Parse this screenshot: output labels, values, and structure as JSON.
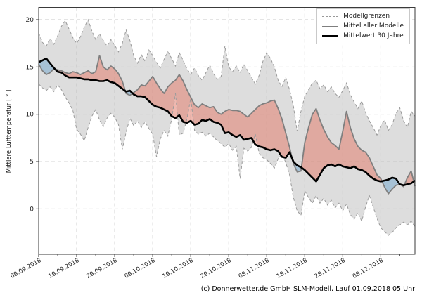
{
  "figure": {
    "ylabel": "Mittlere Lufttemperatur [ ° ]",
    "caption": "(c) Donnerwetter.de GmbH SLM-Modell, Lauf 01.09.2018 05 Uhr",
    "legend": [
      {
        "label": "Modellgrenzen",
        "style": "dashed",
        "color": "#999999"
      },
      {
        "label": "Mittel aller Modelle",
        "style": "solid",
        "color": "#7f7f7f"
      },
      {
        "label": "Mittelwert 30 Jahre",
        "style": "solid-thick",
        "color": "#000000"
      }
    ]
  },
  "chart_data": {
    "type": "line",
    "title": "",
    "xlabel": "",
    "ylabel": "Mittlere Lufttemperatur [ ° ]",
    "x_unit": "days since 09.09.2018",
    "x_tick_days": [
      0,
      10,
      20,
      30,
      40,
      50,
      60,
      70,
      80,
      90
    ],
    "x_tick_labels": [
      "09.09.2018",
      "19.09.2018",
      "29.09.2018",
      "09.10.2018",
      "19.10.2018",
      "29.10.2018",
      "08.11.2018",
      "18.11.2018",
      "28.11.2018",
      "08.12.2018"
    ],
    "x_minor_tick_days": [
      5,
      15,
      25,
      35,
      45,
      55,
      65,
      75,
      85,
      95
    ],
    "y_ticks": [
      0,
      5,
      10,
      15,
      20
    ],
    "xlim_days": [
      0,
      99
    ],
    "ylim": [
      -4.8,
      21.3
    ],
    "grid": true,
    "legend_position": "upper right",
    "colors": {
      "band_fill": "rgba(180,180,180,0.45)",
      "band_edge": "#9a9a9a",
      "above_climate_fill": "rgba(226,125,110,0.55)",
      "below_climate_fill": "rgba(120,170,205,0.55)",
      "model_mean_line": "#7f7f7f",
      "climate_mean_line": "#000000",
      "grid_line": "#c9c9c9"
    },
    "series": [
      {
        "name": "Modellgrenzen (oben)",
        "role": "upper_bound",
        "values": [
          18.6,
          17.6,
          17.2,
          18.0,
          17.4,
          18.3,
          19.3,
          19.9,
          19.0,
          18.1,
          17.5,
          18.2,
          19.2,
          20.0,
          18.8,
          17.9,
          18.5,
          17.8,
          17.2,
          17.9,
          17.3,
          16.6,
          17.5,
          18.9,
          17.8,
          16.2,
          15.4,
          16.3,
          15.6,
          16.8,
          16.2,
          15.5,
          14.9,
          15.8,
          16.6,
          15.9,
          15.1,
          16.5,
          15.7,
          14.8,
          14.2,
          14.9,
          14.1,
          13.6,
          14.4,
          15.2,
          14.3,
          13.7,
          14.0,
          17.2,
          15.0,
          14.5,
          15.1,
          14.4,
          15.3,
          14.6,
          13.9,
          13.2,
          14.1,
          15.6,
          16.5,
          15.9,
          15.0,
          13.6,
          12.9,
          13.9,
          12.6,
          10.9,
          8.2,
          10.3,
          11.9,
          12.6,
          13.3,
          13.6,
          12.7,
          13.1,
          12.4,
          12.9,
          12.2,
          11.8,
          12.5,
          13.3,
          12.1,
          11.3,
          10.6,
          11.4,
          10.2,
          9.3,
          8.6,
          7.8,
          8.8,
          9.4,
          8.3,
          8.9,
          10.1,
          10.7,
          9.3,
          8.6,
          10.3,
          9.8
        ]
      },
      {
        "name": "Modellgrenzen (unten)",
        "role": "lower_bound",
        "values": [
          13.2,
          12.8,
          12.5,
          12.9,
          12.4,
          13.1,
          12.6,
          11.8,
          11.2,
          10.4,
          8.4,
          7.9,
          7.2,
          8.6,
          9.8,
          10.5,
          9.4,
          8.7,
          9.6,
          10.1,
          9.7,
          8.9,
          6.3,
          8.1,
          9.6,
          8.8,
          9.3,
          8.6,
          9.2,
          8.5,
          7.9,
          5.5,
          7.4,
          8.3,
          7.7,
          9.5,
          12.2,
          7.8,
          8.0,
          9.5,
          11.7,
          8.3,
          7.9,
          8.1,
          7.7,
          8.0,
          7.6,
          7.2,
          6.9,
          6.5,
          6.9,
          6.2,
          6.6,
          3.2,
          6.4,
          6.1,
          6.5,
          7.9,
          5.9,
          5.4,
          5.2,
          4.8,
          4.3,
          5.3,
          5.8,
          4.9,
          3.6,
          1.2,
          -0.2,
          -0.7,
          1.9,
          1.2,
          0.6,
          1.4,
          0.6,
          1.1,
          0.4,
          0.9,
          0.1,
          0.6,
          -0.2,
          0.5,
          -0.6,
          -1.1,
          -0.4,
          -1.3,
          0.2,
          1.4,
          0.2,
          -1.0,
          -2.0,
          -2.4,
          -2.8,
          -2.5,
          -2.0,
          -1.7,
          -1.4,
          -1.7,
          -1.3,
          -1.9
        ]
      },
      {
        "name": "Mittel aller Modelle",
        "role": "model_mean",
        "values": [
          15.3,
          14.6,
          14.2,
          14.4,
          14.8,
          14.7,
          14.6,
          14.4,
          14.3,
          14.5,
          14.4,
          14.2,
          14.4,
          14.6,
          14.3,
          14.5,
          16.2,
          15.0,
          14.7,
          15.1,
          14.8,
          14.3,
          13.5,
          12.2,
          12.0,
          12.3,
          12.6,
          13.1,
          13.0,
          13.5,
          14.0,
          13.3,
          12.7,
          12.2,
          12.9,
          13.3,
          13.6,
          14.2,
          13.5,
          12.6,
          11.8,
          11.0,
          10.7,
          11.1,
          10.9,
          10.7,
          10.8,
          10.2,
          10.0,
          10.3,
          10.5,
          10.4,
          10.4,
          10.3,
          10.0,
          9.7,
          10.1,
          10.5,
          10.9,
          11.1,
          11.2,
          11.4,
          11.5,
          10.6,
          9.5,
          8.0,
          6.5,
          4.8,
          3.9,
          4.0,
          7.0,
          8.6,
          10.0,
          10.6,
          9.4,
          8.4,
          7.6,
          7.0,
          6.7,
          6.3,
          8.2,
          10.3,
          8.6,
          7.4,
          6.6,
          6.2,
          6.0,
          5.4,
          4.5,
          3.6,
          3.2,
          2.3,
          1.6,
          2.1,
          2.5,
          2.6,
          2.35,
          3.3,
          4.0,
          2.4
        ]
      },
      {
        "name": "Mittelwert 30 Jahre",
        "role": "climate_mean",
        "values": [
          15.5,
          15.7,
          15.9,
          15.4,
          14.9,
          14.5,
          14.4,
          14.1,
          13.9,
          13.9,
          13.9,
          13.8,
          13.7,
          13.7,
          13.6,
          13.6,
          13.5,
          13.5,
          13.6,
          13.4,
          13.3,
          13.0,
          12.7,
          12.4,
          12.5,
          12.1,
          11.9,
          11.9,
          11.8,
          11.4,
          11.0,
          10.8,
          10.7,
          10.5,
          10.3,
          9.8,
          9.6,
          9.9,
          9.2,
          9.1,
          9.3,
          8.9,
          9.0,
          9.4,
          9.3,
          9.5,
          9.2,
          9.1,
          8.9,
          8.0,
          8.1,
          7.8,
          7.6,
          7.8,
          7.3,
          7.4,
          7.5,
          6.8,
          6.6,
          6.5,
          6.3,
          6.2,
          6.3,
          6.1,
          5.5,
          5.4,
          6.0,
          5.0,
          4.6,
          4.4,
          4.1,
          3.7,
          3.3,
          2.9,
          3.6,
          4.3,
          4.6,
          4.7,
          4.5,
          4.7,
          4.5,
          4.4,
          4.3,
          4.5,
          4.2,
          4.1,
          3.9,
          3.5,
          3.2,
          3.0,
          2.9,
          3.0,
          3.1,
          3.3,
          3.2,
          2.6,
          2.5,
          2.6,
          2.7,
          3.0
        ]
      }
    ]
  }
}
